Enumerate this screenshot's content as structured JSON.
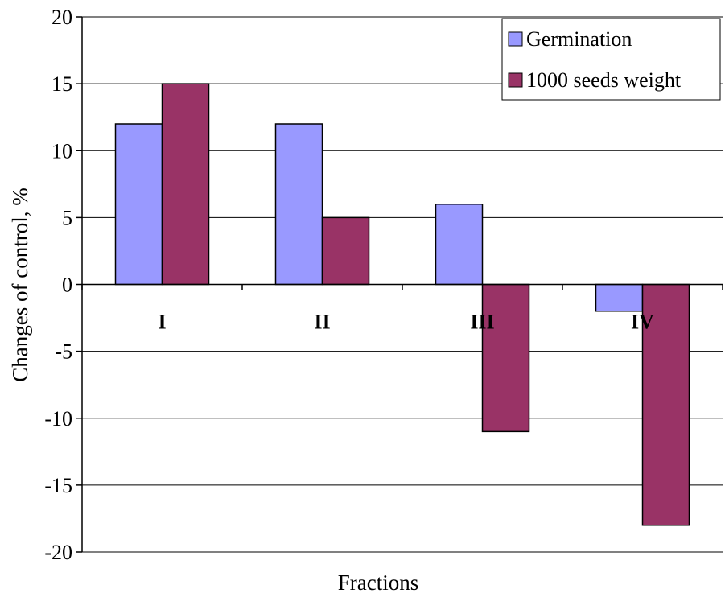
{
  "chart_data": {
    "type": "bar",
    "categories": [
      "I",
      "II",
      "III",
      "IV"
    ],
    "series": [
      {
        "name": "Germination",
        "values": [
          12,
          12,
          6,
          -2
        ],
        "color": "#9999ff"
      },
      {
        "name": "1000 seeds weight",
        "values": [
          15,
          5,
          -11,
          -18
        ],
        "color": "#993366"
      }
    ],
    "xlabel": "Fractions",
    "ylabel": "Changes of control, %",
    "ylim": [
      -20,
      20
    ],
    "yticks": [
      -20,
      -15,
      -10,
      -5,
      0,
      5,
      10,
      15,
      20
    ],
    "grid": true,
    "legend_position": "top-right"
  }
}
